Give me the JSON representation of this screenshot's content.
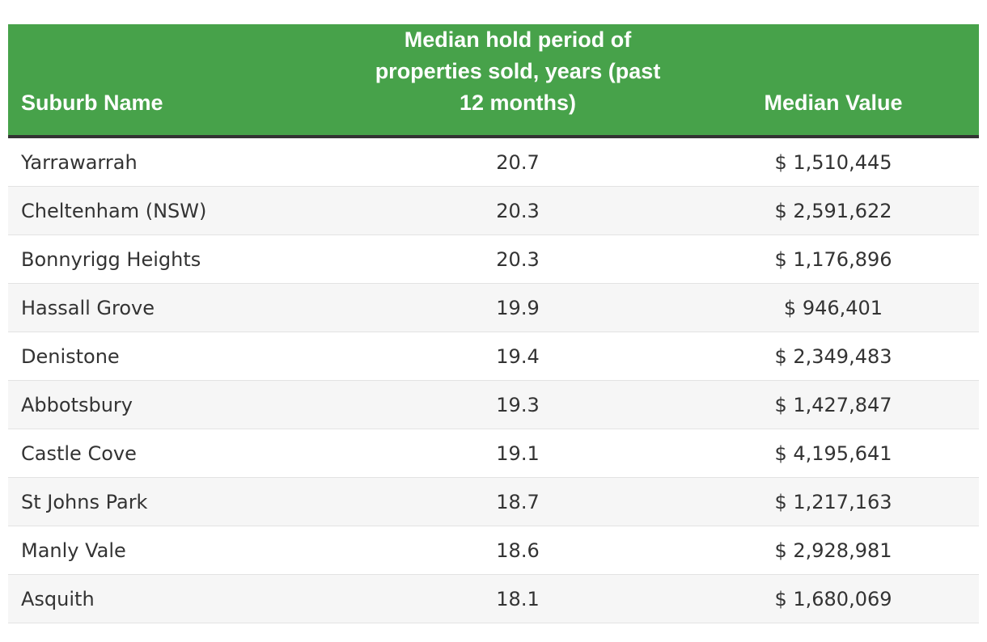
{
  "table": {
    "headers": [
      "Suburb Name",
      "Median hold period of properties sold, years (past 12 months)",
      "Median Value"
    ],
    "rows": [
      {
        "suburb": "Yarrawarrah",
        "hold": "20.7",
        "value": "$ 1,510,445"
      },
      {
        "suburb": "Cheltenham (NSW)",
        "hold": "20.3",
        "value": "$ 2,591,622"
      },
      {
        "suburb": "Bonnyrigg Heights",
        "hold": "20.3",
        "value": "$ 1,176,896"
      },
      {
        "suburb": "Hassall Grove",
        "hold": "19.9",
        "value": "$ 946,401"
      },
      {
        "suburb": "Denistone",
        "hold": "19.4",
        "value": "$ 2,349,483"
      },
      {
        "suburb": "Abbotsbury",
        "hold": "19.3",
        "value": "$ 1,427,847"
      },
      {
        "suburb": "Castle Cove",
        "hold": "19.1",
        "value": "$ 4,195,641"
      },
      {
        "suburb": "St Johns Park",
        "hold": "18.7",
        "value": "$ 1,217,163"
      },
      {
        "suburb": "Manly Vale",
        "hold": "18.6",
        "value": "$ 2,928,981"
      },
      {
        "suburb": "Asquith",
        "hold": "18.1",
        "value": "$ 1,680,069"
      }
    ],
    "colors": {
      "header_bg": "#47a24a",
      "header_text": "#ffffff",
      "header_rule": "#333333",
      "stripe": "#f6f6f6"
    }
  }
}
